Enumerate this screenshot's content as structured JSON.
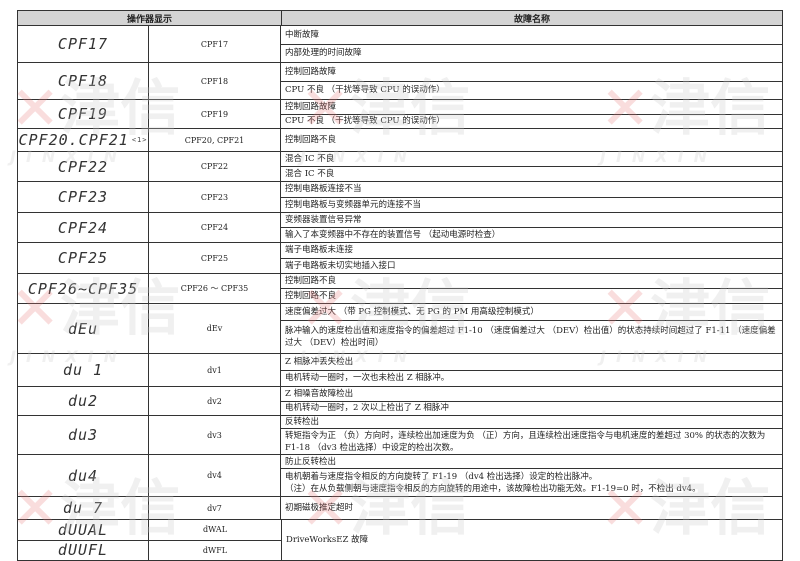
{
  "header": {
    "display_col": "操作器显示",
    "fault_col": "故障名称"
  },
  "watermark": {
    "brand": "津信",
    "latin": "JINXIN"
  },
  "rows": [
    {
      "display": "CPF17",
      "code": "CPF17",
      "faults": [
        "中断故障",
        "内部处理的时间故障"
      ]
    },
    {
      "display": "CPF18",
      "code": "CPF18",
      "faults": [
        "控制回路故障",
        "CPU 不良 （干扰等导致 CPU 的误动作）"
      ]
    },
    {
      "display": "CPF19",
      "code": "CPF19",
      "faults": [
        "控制回路故障",
        "CPU 不良 （干扰等导致 CPU 的误动作）"
      ]
    },
    {
      "display": "CPF20.CPF21",
      "display_note": "<1>",
      "code": "CPF20, CPF21",
      "faults": [
        "控制回路不良"
      ]
    },
    {
      "display": "CPF22",
      "code": "CPF22",
      "faults": [
        "混合 IC 不良",
        "混合 IC 不良"
      ]
    },
    {
      "display": "CPF23",
      "code": "CPF23",
      "faults": [
        "控制电路板连接不当",
        "控制电路板与变频器单元的连接不当"
      ]
    },
    {
      "display": "CPF24",
      "code": "CPF24",
      "faults": [
        "变频器装置信号异常",
        "输入了本变频器中不存在的装置信号 （起动电源时检查）"
      ]
    },
    {
      "display": "CPF25",
      "code": "CPF25",
      "faults": [
        "端子电路板未连接",
        "端子电路板未切实地插入接口"
      ]
    },
    {
      "display": "CPF26~CPF35",
      "code": "CPF26 ～ CPF35",
      "faults": [
        "控制回路不良",
        "控制回路不良"
      ]
    },
    {
      "display": "dEu",
      "code": "dEv",
      "faults": [
        "速度偏差过大 （带 PG 控制模式、无 PG 的 PM 用高级控制模式）",
        "脉冲输入的速度检出值和速度指令的偏差超过 F1-10 （速度偏差过大 （DEV）检出值）的状态持续时间超过了 F1-11 （速度偏差过大 （DEV）检出时间）"
      ]
    },
    {
      "display": "du 1",
      "code": "dv1",
      "faults": [
        "Z 相脉冲丢失检出",
        "电机转动一圈时，一次也未检出 Z 相脉冲。"
      ]
    },
    {
      "display": "du2",
      "code": "dv2",
      "faults": [
        "Z 相噪音故障检出",
        "电机转动一圈时，2 次以上检出了 Z 相脉冲"
      ]
    },
    {
      "display": "du3",
      "code": "dv3",
      "faults": [
        "反转检出",
        "转矩指令为正 （负）方向时，连续检出加速度为负 （正）方向，且连续检出速度指令与电机速度的差超过 30% 的状态的次数为 F1-18 （dv3 检出选择）中设定的检出次数。"
      ]
    },
    {
      "display": "du4",
      "code": "dv4",
      "faults": [
        "防止反转检出",
        "电机朝着与速度指令相反的方向旋转了 F1-19 （dv4 检出选择）设定的检出脉冲。\n（注）在从负载侧朝与速度指令相反的方向旋转的用途中，该故障检出功能无效。F1-19=0 时，不检出 dv4。"
      ]
    },
    {
      "display": "du 7",
      "code": "dv7",
      "faults": [
        "初期磁极推定超时"
      ]
    }
  ],
  "dw_group": {
    "displays": [
      "dUUAL",
      "dUUFL"
    ],
    "codes": [
      "dWAL",
      "dWFL"
    ],
    "fault": "DriveWorksEZ 故障"
  }
}
